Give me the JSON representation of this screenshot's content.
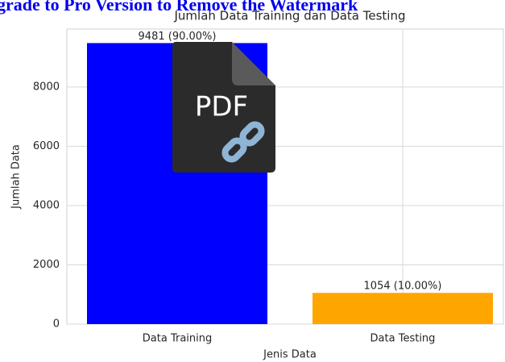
{
  "watermark": "grade to Pro Version to Remove the Watermark",
  "icon_label": "PDF",
  "chart_data": {
    "type": "bar",
    "title": "Jumlah Data Training dan Data Testing",
    "categories": [
      "Data Training",
      "Data Testing"
    ],
    "values": [
      9481,
      1054
    ],
    "value_labels": [
      "9481 (90.00%)",
      "1054 (10.00%)"
    ],
    "colors": [
      "#0000ff",
      "#ffa500"
    ],
    "xlabel": "Jenis Data",
    "ylabel": "Jumlah Data",
    "ylim": [
      0,
      9955
    ],
    "yticks": [
      0,
      2000,
      4000,
      6000,
      8000
    ],
    "grid": true
  }
}
